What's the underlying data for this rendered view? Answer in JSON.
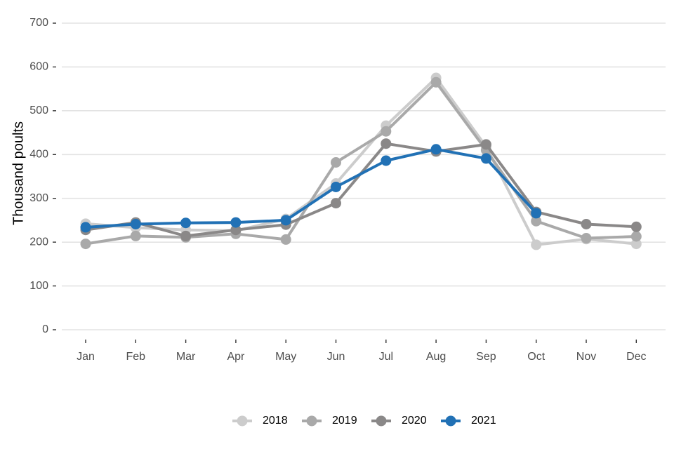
{
  "chart_data": {
    "type": "line",
    "categories": [
      "Jan",
      "Feb",
      "Mar",
      "Apr",
      "May",
      "Jun",
      "Jul",
      "Aug",
      "Sep",
      "Oct",
      "Nov",
      "Dec"
    ],
    "ylabel": "Thousand poults",
    "ylim": [
      0,
      700
    ],
    "yticks": [
      0,
      100,
      200,
      300,
      400,
      500,
      600,
      700
    ],
    "grid": true,
    "legend_position": "bottom",
    "series": [
      {
        "name": "2018",
        "color": "#cccccc",
        "values": [
          242,
          233,
          228,
          226,
          253,
          334,
          466,
          575,
          418,
          194,
          207,
          196
        ]
      },
      {
        "name": "2019",
        "color": "#a9a9a9",
        "values": [
          196,
          214,
          211,
          219,
          206,
          382,
          453,
          565,
          410,
          248,
          209,
          213
        ]
      },
      {
        "name": "2020",
        "color": "#8a8888",
        "values": [
          228,
          245,
          214,
          228,
          240,
          289,
          425,
          407,
          423,
          269,
          241,
          235
        ]
      },
      {
        "name": "2021",
        "color": "#2171b5",
        "values": [
          234,
          241,
          244,
          245,
          250,
          326,
          386,
          412,
          391,
          266,
          null,
          null
        ]
      }
    ]
  }
}
